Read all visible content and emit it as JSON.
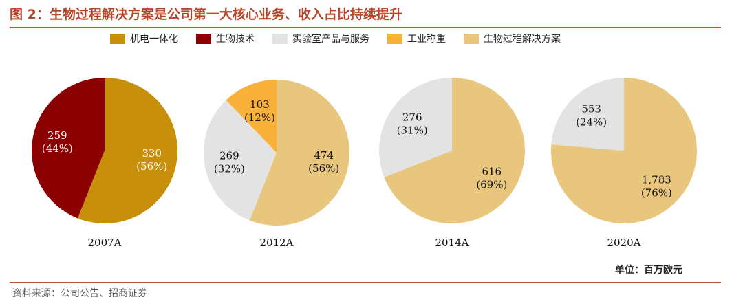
{
  "header": {
    "title": "图 2：生物过程解决方案是公司第一大核心业务、收入占比持续提升"
  },
  "legend": {
    "items": [
      {
        "label": "机电一体化",
        "color": "#C8900A"
      },
      {
        "label": "生物技术",
        "color": "#8B0000"
      },
      {
        "label": "实验室产品与服务",
        "color": "#E3E3E3"
      },
      {
        "label": "工业称重",
        "color": "#FAB13A"
      },
      {
        "label": "生物过程解决方案",
        "color": "#E8C67E"
      }
    ]
  },
  "chart_data": {
    "type": "pie",
    "unit": "百万欧元",
    "series_colors": {
      "机电一体化": "#C8900A",
      "生物技术": "#8B0000",
      "实验室产品与服务": "#E3E3E3",
      "工业称重": "#FAB13A",
      "生物过程解决方案": "#E8C67E"
    },
    "pies": [
      {
        "label": "2007A",
        "slices": [
          {
            "name": "机电一体化",
            "value": 330,
            "value_label": "330",
            "pct_label": "(56%)"
          },
          {
            "name": "生物技术",
            "value": 259,
            "value_label": "259",
            "pct_label": "(44%)"
          }
        ]
      },
      {
        "label": "2012A",
        "slices": [
          {
            "name": "生物过程解决方案",
            "value": 474,
            "value_label": "474",
            "pct_label": "(56%)"
          },
          {
            "name": "实验室产品与服务",
            "value": 269,
            "value_label": "269",
            "pct_label": "(32%)"
          },
          {
            "name": "工业称重",
            "value": 103,
            "value_label": "103",
            "pct_label": "(12%)"
          }
        ]
      },
      {
        "label": "2014A",
        "slices": [
          {
            "name": "生物过程解决方案",
            "value": 616,
            "value_label": "616",
            "pct_label": "(69%)"
          },
          {
            "name": "实验室产品与服务",
            "value": 276,
            "value_label": "276",
            "pct_label": "(31%)"
          }
        ]
      },
      {
        "label": "2020A",
        "slices": [
          {
            "name": "生物过程解决方案",
            "value": 1783,
            "value_label": "1,783",
            "pct_label": "(76%)"
          },
          {
            "name": "实验室产品与服务",
            "value": 553,
            "value_label": "553",
            "pct_label": "(24%)"
          }
        ]
      }
    ]
  },
  "unit_note": "单位：百万欧元",
  "source": "资料来源：公司公告、招商证券"
}
